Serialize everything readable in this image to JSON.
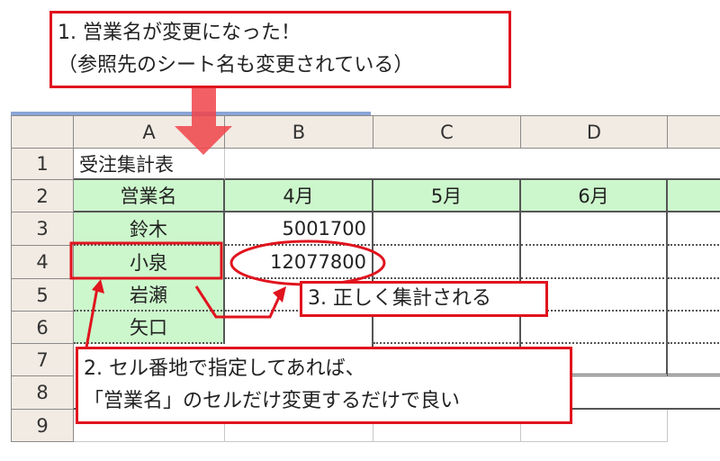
{
  "callouts": {
    "c1_line1": "1. 営業名が変更になった！",
    "c1_line2": "（参照先のシート名も変更されている）",
    "c2_line1": "2. セル番地で指定してあれば、",
    "c2_line2": "「営業名」のセルだけ変更するだけで良い",
    "c3": "3. 正しく集計される"
  },
  "sheet": {
    "columns": [
      "A",
      "B",
      "C",
      "D"
    ],
    "rows": [
      "1",
      "2",
      "3",
      "4",
      "5",
      "6",
      "7",
      "8",
      "9"
    ],
    "title": "受注集計表",
    "header": [
      "営業名",
      "4月",
      "5月",
      "6月"
    ],
    "names": [
      "鈴木",
      "小泉",
      "岩瀬",
      "矢口"
    ],
    "b_values": [
      "5001700",
      "12077800"
    ]
  },
  "colors": {
    "accent_red": "#e0141e",
    "header_green": "#ccf7cc"
  }
}
